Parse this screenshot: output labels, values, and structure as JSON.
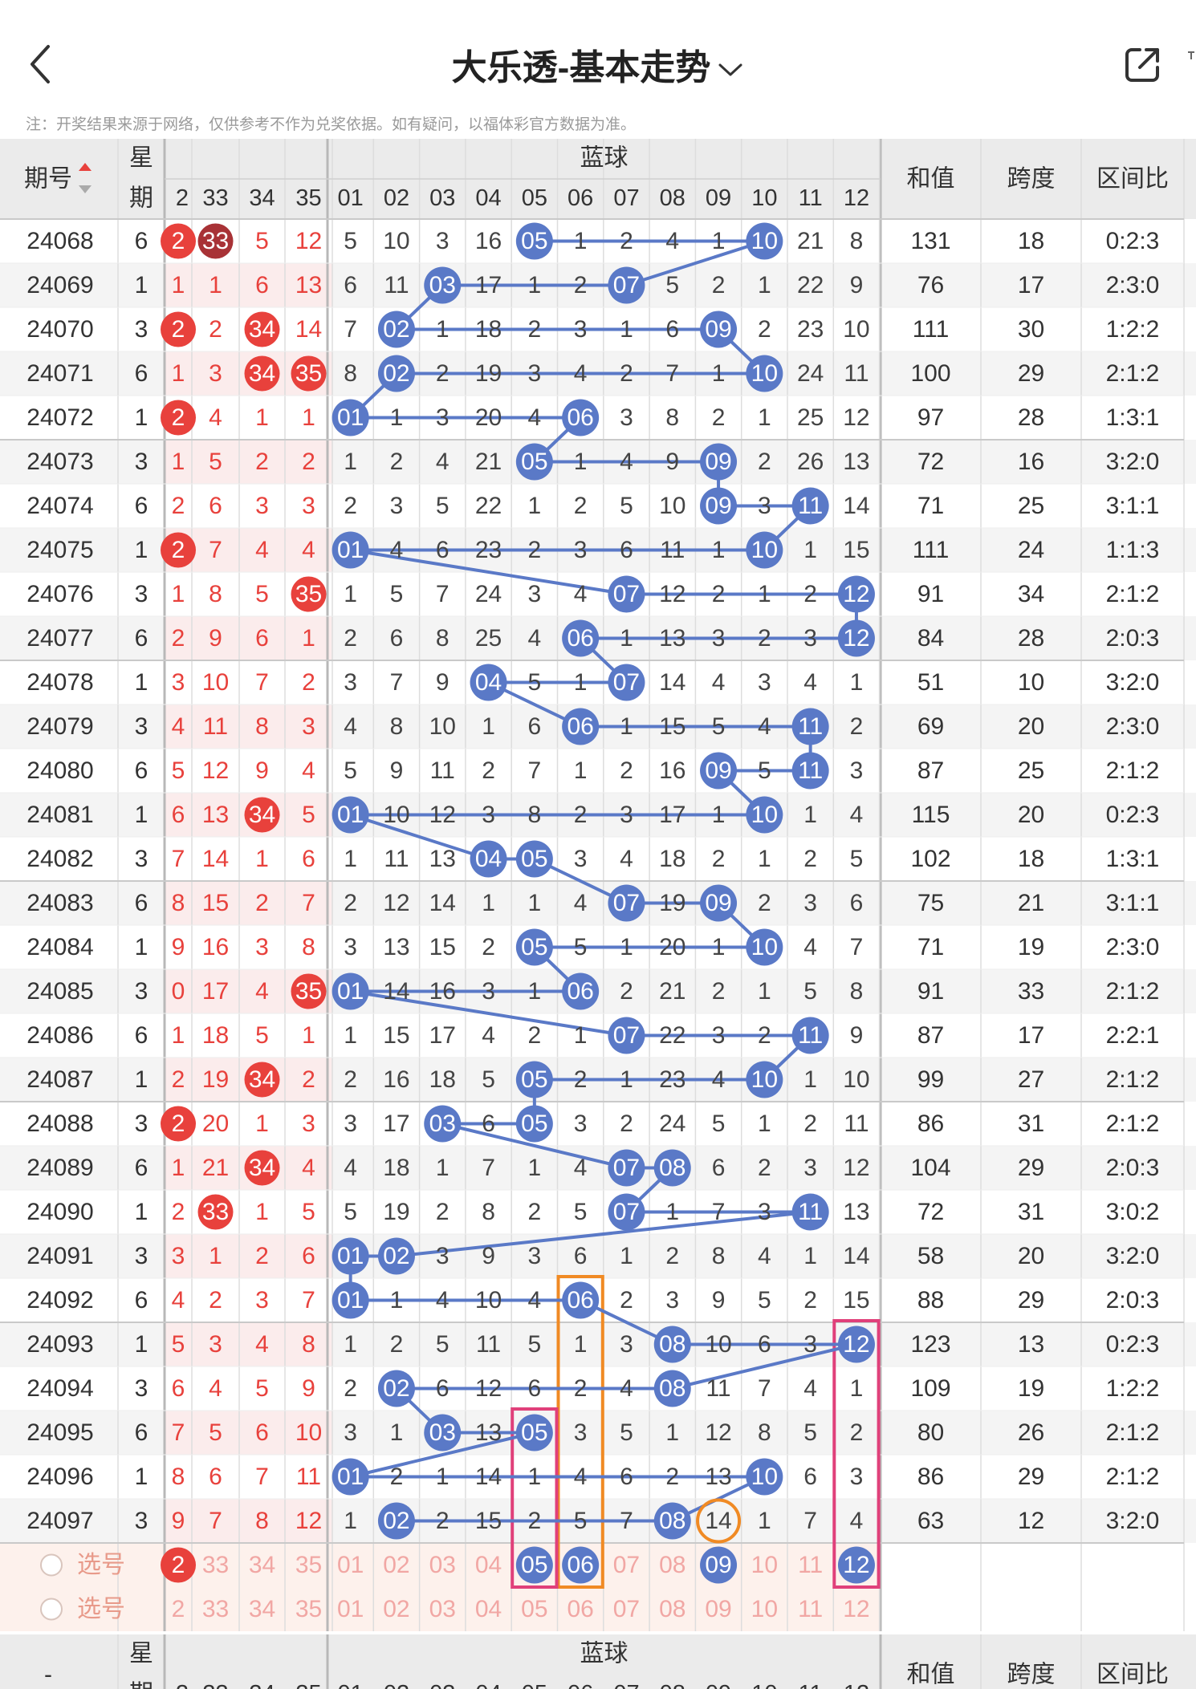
{
  "nav": {
    "title": "大乐透-基本走势",
    "back_icon": "chevron-left-icon",
    "dropdown_icon": "chevron-down-icon",
    "share_icon": "share-external-icon"
  },
  "notice": "注：开奖结果来源于网络，仅供参考不作为兑奖依据。如有疑问，以福体彩官方数据为准。",
  "header": {
    "period": "期号",
    "weekday_top": "星",
    "weekday_bottom": "期",
    "blue_group": "蓝球",
    "sum": "和值",
    "span": "跨度",
    "ratio": "区间比",
    "front_cols": [
      "2",
      "33",
      "34",
      "35"
    ],
    "blue_cols": [
      "01",
      "02",
      "03",
      "04",
      "05",
      "06",
      "07",
      "08",
      "09",
      "10",
      "11",
      "12"
    ]
  },
  "footer_header": {
    "period": "-",
    "weekday_top": "星",
    "weekday_bottom": "期",
    "blue_group": "蓝球",
    "sum": "和值",
    "span": "跨度",
    "ratio": "区间比",
    "front_cols": [
      "2",
      "33",
      "34",
      "35"
    ],
    "blue_cols": [
      "01",
      "02",
      "03",
      "04",
      "05",
      "06",
      "07",
      "08",
      "09",
      "10",
      "11",
      "12"
    ]
  },
  "rows": [
    {
      "period": "24068",
      "weekday": "6",
      "front": [
        "2",
        "33",
        "5",
        "12"
      ],
      "front_hit": [
        1,
        1,
        0,
        0
      ],
      "blue": [
        "05",
        "10"
      ],
      "misses": [
        "5",
        "10",
        "3",
        "16",
        "05",
        "1",
        "2",
        "4",
        "1",
        "10",
        "21",
        "8"
      ],
      "sum": "131",
      "span": "18",
      "ratio": "0:2:3"
    },
    {
      "period": "24069",
      "weekday": "1",
      "front": [
        "1",
        "1",
        "6",
        "13"
      ],
      "front_hit": [
        0,
        0,
        0,
        0
      ],
      "blue": [
        "03",
        "07"
      ],
      "misses": [
        "6",
        "11",
        "03",
        "17",
        "1",
        "2",
        "07",
        "5",
        "2",
        "1",
        "22",
        "9"
      ],
      "sum": "76",
      "span": "17",
      "ratio": "2:3:0"
    },
    {
      "period": "24070",
      "weekday": "3",
      "front": [
        "2",
        "2",
        "34",
        "14"
      ],
      "front_hit": [
        1,
        0,
        1,
        0
      ],
      "blue": [
        "02",
        "09"
      ],
      "misses": [
        "7",
        "02",
        "1",
        "18",
        "2",
        "3",
        "1",
        "6",
        "09",
        "2",
        "23",
        "10"
      ],
      "sum": "111",
      "span": "30",
      "ratio": "1:2:2"
    },
    {
      "period": "24071",
      "weekday": "6",
      "front": [
        "1",
        "3",
        "34",
        "35"
      ],
      "front_hit": [
        0,
        0,
        1,
        1
      ],
      "blue": [
        "02",
        "10"
      ],
      "misses": [
        "8",
        "02",
        "2",
        "19",
        "3",
        "4",
        "2",
        "7",
        "1",
        "10",
        "24",
        "11"
      ],
      "sum": "100",
      "span": "29",
      "ratio": "2:1:2"
    },
    {
      "period": "24072",
      "weekday": "1",
      "front": [
        "2",
        "4",
        "1",
        "1"
      ],
      "front_hit": [
        1,
        0,
        0,
        0
      ],
      "blue": [
        "01",
        "06"
      ],
      "misses": [
        "01",
        "1",
        "3",
        "20",
        "4",
        "06",
        "3",
        "8",
        "2",
        "1",
        "25",
        "12"
      ],
      "sum": "97",
      "span": "28",
      "ratio": "1:3:1"
    },
    {
      "period": "24073",
      "weekday": "3",
      "front": [
        "1",
        "5",
        "2",
        "2"
      ],
      "front_hit": [
        0,
        0,
        0,
        0
      ],
      "blue": [
        "05",
        "09"
      ],
      "misses": [
        "1",
        "2",
        "4",
        "21",
        "05",
        "1",
        "4",
        "9",
        "09",
        "2",
        "26",
        "13"
      ],
      "sum": "72",
      "span": "16",
      "ratio": "3:2:0"
    },
    {
      "period": "24074",
      "weekday": "6",
      "front": [
        "2",
        "6",
        "3",
        "3"
      ],
      "front_hit": [
        0,
        0,
        0,
        0
      ],
      "blue": [
        "09",
        "11"
      ],
      "misses": [
        "2",
        "3",
        "5",
        "22",
        "1",
        "2",
        "5",
        "10",
        "09",
        "3",
        "11",
        "14"
      ],
      "sum": "71",
      "span": "25",
      "ratio": "3:1:1"
    },
    {
      "period": "24075",
      "weekday": "1",
      "front": [
        "2",
        "7",
        "4",
        "4"
      ],
      "front_hit": [
        1,
        0,
        0,
        0
      ],
      "blue": [
        "01",
        "10"
      ],
      "misses": [
        "01",
        "4",
        "6",
        "23",
        "2",
        "3",
        "6",
        "11",
        "1",
        "10",
        "1",
        "15"
      ],
      "sum": "111",
      "span": "24",
      "ratio": "1:1:3"
    },
    {
      "period": "24076",
      "weekday": "3",
      "front": [
        "1",
        "8",
        "5",
        "35"
      ],
      "front_hit": [
        0,
        0,
        0,
        1
      ],
      "blue": [
        "07",
        "12"
      ],
      "misses": [
        "1",
        "5",
        "7",
        "24",
        "3",
        "4",
        "07",
        "12",
        "2",
        "1",
        "2",
        "12"
      ],
      "sum": "91",
      "span": "34",
      "ratio": "2:1:2"
    },
    {
      "period": "24077",
      "weekday": "6",
      "front": [
        "2",
        "9",
        "6",
        "1"
      ],
      "front_hit": [
        0,
        0,
        0,
        0
      ],
      "blue": [
        "06",
        "12"
      ],
      "misses": [
        "2",
        "6",
        "8",
        "25",
        "4",
        "06",
        "1",
        "13",
        "3",
        "2",
        "3",
        "12"
      ],
      "sum": "84",
      "span": "28",
      "ratio": "2:0:3"
    },
    {
      "period": "24078",
      "weekday": "1",
      "front": [
        "3",
        "10",
        "7",
        "2"
      ],
      "front_hit": [
        0,
        0,
        0,
        0
      ],
      "blue": [
        "04",
        "07"
      ],
      "misses": [
        "3",
        "7",
        "9",
        "04",
        "5",
        "1",
        "07",
        "14",
        "4",
        "3",
        "4",
        "1"
      ],
      "sum": "51",
      "span": "10",
      "ratio": "3:2:0"
    },
    {
      "period": "24079",
      "weekday": "3",
      "front": [
        "4",
        "11",
        "8",
        "3"
      ],
      "front_hit": [
        0,
        0,
        0,
        0
      ],
      "blue": [
        "06",
        "11"
      ],
      "misses": [
        "4",
        "8",
        "10",
        "1",
        "6",
        "06",
        "1",
        "15",
        "5",
        "4",
        "11",
        "2"
      ],
      "sum": "69",
      "span": "20",
      "ratio": "2:3:0"
    },
    {
      "period": "24080",
      "weekday": "6",
      "front": [
        "5",
        "12",
        "9",
        "4"
      ],
      "front_hit": [
        0,
        0,
        0,
        0
      ],
      "blue": [
        "09",
        "11"
      ],
      "misses": [
        "5",
        "9",
        "11",
        "2",
        "7",
        "1",
        "2",
        "16",
        "09",
        "5",
        "11",
        "3"
      ],
      "sum": "87",
      "span": "25",
      "ratio": "2:1:2"
    },
    {
      "period": "24081",
      "weekday": "1",
      "front": [
        "6",
        "13",
        "34",
        "5"
      ],
      "front_hit": [
        0,
        0,
        1,
        0
      ],
      "blue": [
        "01",
        "10"
      ],
      "misses": [
        "01",
        "10",
        "12",
        "3",
        "8",
        "2",
        "3",
        "17",
        "1",
        "10",
        "1",
        "4"
      ],
      "sum": "115",
      "span": "20",
      "ratio": "0:2:3"
    },
    {
      "period": "24082",
      "weekday": "3",
      "front": [
        "7",
        "14",
        "1",
        "6"
      ],
      "front_hit": [
        0,
        0,
        0,
        0
      ],
      "blue": [
        "04",
        "05"
      ],
      "misses": [
        "1",
        "11",
        "13",
        "04",
        "05",
        "3",
        "4",
        "18",
        "2",
        "1",
        "2",
        "5"
      ],
      "sum": "102",
      "span": "18",
      "ratio": "1:3:1"
    },
    {
      "period": "24083",
      "weekday": "6",
      "front": [
        "8",
        "15",
        "2",
        "7"
      ],
      "front_hit": [
        0,
        0,
        0,
        0
      ],
      "blue": [
        "07",
        "09"
      ],
      "misses": [
        "2",
        "12",
        "14",
        "1",
        "1",
        "4",
        "07",
        "19",
        "09",
        "2",
        "3",
        "6"
      ],
      "sum": "75",
      "span": "21",
      "ratio": "3:1:1"
    },
    {
      "period": "24084",
      "weekday": "1",
      "front": [
        "9",
        "16",
        "3",
        "8"
      ],
      "front_hit": [
        0,
        0,
        0,
        0
      ],
      "blue": [
        "05",
        "10"
      ],
      "misses": [
        "3",
        "13",
        "15",
        "2",
        "05",
        "5",
        "1",
        "20",
        "1",
        "10",
        "4",
        "7"
      ],
      "sum": "71",
      "span": "19",
      "ratio": "2:3:0"
    },
    {
      "period": "24085",
      "weekday": "3",
      "front": [
        "0",
        "17",
        "4",
        "35"
      ],
      "front_hit": [
        0,
        0,
        0,
        1
      ],
      "blue": [
        "01",
        "06"
      ],
      "misses": [
        "01",
        "14",
        "16",
        "3",
        "1",
        "06",
        "2",
        "21",
        "2",
        "1",
        "5",
        "8"
      ],
      "sum": "91",
      "span": "33",
      "ratio": "2:1:2"
    },
    {
      "period": "24086",
      "weekday": "6",
      "front": [
        "1",
        "18",
        "5",
        "1"
      ],
      "front_hit": [
        0,
        0,
        0,
        0
      ],
      "blue": [
        "07",
        "11"
      ],
      "misses": [
        "1",
        "15",
        "17",
        "4",
        "2",
        "1",
        "07",
        "22",
        "3",
        "2",
        "11",
        "9"
      ],
      "sum": "87",
      "span": "17",
      "ratio": "2:2:1"
    },
    {
      "period": "24087",
      "weekday": "1",
      "front": [
        "2",
        "19",
        "34",
        "2"
      ],
      "front_hit": [
        0,
        0,
        1,
        0
      ],
      "blue": [
        "05",
        "10"
      ],
      "misses": [
        "2",
        "16",
        "18",
        "5",
        "05",
        "2",
        "1",
        "23",
        "4",
        "10",
        "1",
        "10"
      ],
      "sum": "99",
      "span": "27",
      "ratio": "2:1:2"
    },
    {
      "period": "24088",
      "weekday": "3",
      "front": [
        "2",
        "20",
        "1",
        "3"
      ],
      "front_hit": [
        1,
        0,
        0,
        0
      ],
      "blue": [
        "03",
        "05"
      ],
      "misses": [
        "3",
        "17",
        "03",
        "6",
        "05",
        "3",
        "2",
        "24",
        "5",
        "1",
        "2",
        "11"
      ],
      "sum": "86",
      "span": "31",
      "ratio": "2:1:2"
    },
    {
      "period": "24089",
      "weekday": "6",
      "front": [
        "1",
        "21",
        "34",
        "4"
      ],
      "front_hit": [
        0,
        0,
        1,
        0
      ],
      "blue": [
        "07",
        "08"
      ],
      "misses": [
        "4",
        "18",
        "1",
        "7",
        "1",
        "4",
        "07",
        "08",
        "6",
        "2",
        "3",
        "12"
      ],
      "sum": "104",
      "span": "29",
      "ratio": "2:0:3"
    },
    {
      "period": "24090",
      "weekday": "1",
      "front": [
        "2",
        "33",
        "1",
        "5"
      ],
      "front_hit": [
        0,
        1,
        0,
        0
      ],
      "blue": [
        "07",
        "11"
      ],
      "misses": [
        "5",
        "19",
        "2",
        "8",
        "2",
        "5",
        "07",
        "1",
        "7",
        "3",
        "11",
        "13"
      ],
      "sum": "72",
      "span": "31",
      "ratio": "3:0:2"
    },
    {
      "period": "24091",
      "weekday": "3",
      "front": [
        "3",
        "1",
        "2",
        "6"
      ],
      "front_hit": [
        0,
        0,
        0,
        0
      ],
      "blue": [
        "01",
        "02"
      ],
      "misses": [
        "01",
        "02",
        "3",
        "9",
        "3",
        "6",
        "1",
        "2",
        "8",
        "4",
        "1",
        "14"
      ],
      "sum": "58",
      "span": "20",
      "ratio": "3:2:0"
    },
    {
      "period": "24092",
      "weekday": "6",
      "front": [
        "4",
        "2",
        "3",
        "7"
      ],
      "front_hit": [
        0,
        0,
        0,
        0
      ],
      "blue": [
        "01",
        "06"
      ],
      "misses": [
        "01",
        "1",
        "4",
        "10",
        "4",
        "06",
        "2",
        "3",
        "9",
        "5",
        "2",
        "15"
      ],
      "sum": "88",
      "span": "29",
      "ratio": "2:0:3"
    },
    {
      "period": "24093",
      "weekday": "1",
      "front": [
        "5",
        "3",
        "4",
        "8"
      ],
      "front_hit": [
        0,
        0,
        0,
        0
      ],
      "blue": [
        "08",
        "12"
      ],
      "misses": [
        "1",
        "2",
        "5",
        "11",
        "5",
        "1",
        "3",
        "08",
        "10",
        "6",
        "3",
        "12"
      ],
      "sum": "123",
      "span": "13",
      "ratio": "0:2:3"
    },
    {
      "period": "24094",
      "weekday": "3",
      "front": [
        "6",
        "4",
        "5",
        "9"
      ],
      "front_hit": [
        0,
        0,
        0,
        0
      ],
      "blue": [
        "02",
        "08"
      ],
      "misses": [
        "2",
        "02",
        "6",
        "12",
        "6",
        "2",
        "4",
        "08",
        "11",
        "7",
        "4",
        "1"
      ],
      "sum": "109",
      "span": "19",
      "ratio": "1:2:2"
    },
    {
      "period": "24095",
      "weekday": "6",
      "front": [
        "7",
        "5",
        "6",
        "10"
      ],
      "front_hit": [
        0,
        0,
        0,
        0
      ],
      "blue": [
        "03",
        "05"
      ],
      "misses": [
        "3",
        "1",
        "03",
        "13",
        "05",
        "3",
        "5",
        "1",
        "12",
        "8",
        "5",
        "2"
      ],
      "sum": "80",
      "span": "26",
      "ratio": "2:1:2"
    },
    {
      "period": "24096",
      "weekday": "1",
      "front": [
        "8",
        "6",
        "7",
        "11"
      ],
      "front_hit": [
        0,
        0,
        0,
        0
      ],
      "blue": [
        "01",
        "10"
      ],
      "misses": [
        "01",
        "2",
        "1",
        "14",
        "1",
        "4",
        "6",
        "2",
        "13",
        "10",
        "6",
        "3"
      ],
      "sum": "86",
      "span": "29",
      "ratio": "2:1:2"
    },
    {
      "period": "24097",
      "weekday": "3",
      "front": [
        "9",
        "7",
        "8",
        "12"
      ],
      "front_hit": [
        0,
        0,
        0,
        0
      ],
      "blue": [
        "02",
        "08"
      ],
      "misses": [
        "1",
        "02",
        "2",
        "15",
        "2",
        "5",
        "7",
        "08",
        "14",
        "1",
        "7",
        "4"
      ],
      "sum": "63",
      "span": "12",
      "ratio": "3:2:0"
    }
  ],
  "select_rows": [
    {
      "label": "选号",
      "front": [
        "2",
        "33",
        "34",
        "35"
      ],
      "front_selected": [
        1,
        0,
        0,
        0
      ],
      "blue": [
        "01",
        "02",
        "03",
        "04",
        "05",
        "06",
        "07",
        "08",
        "09",
        "10",
        "11",
        "12"
      ],
      "blue_selected": [
        "05",
        "06",
        "09",
        "12"
      ]
    },
    {
      "label": "选号",
      "front": [
        "2",
        "33",
        "34",
        "35"
      ],
      "front_selected": [
        0,
        0,
        0,
        0
      ],
      "blue": [
        "01",
        "02",
        "03",
        "04",
        "05",
        "06",
        "07",
        "08",
        "09",
        "10",
        "11",
        "12"
      ],
      "blue_selected": []
    }
  ],
  "highlights": {
    "orange_column": "06",
    "pink_columns": [
      "05",
      "12"
    ],
    "orange_circle": {
      "period": "24097",
      "column": "09"
    }
  },
  "colors": {
    "blue_ball": "#5a79c7",
    "red_ball": "#e8413c",
    "dark_red_ball": "#a83236",
    "red_text": "#e8413c",
    "orange": "#f08a24",
    "pink": "#e0407a",
    "header_bg": "#ebebeb",
    "row_alt_bg": "#f4f4f4",
    "front_alt_bg": "#fbecec",
    "select_bg": "#fdf1ec"
  }
}
